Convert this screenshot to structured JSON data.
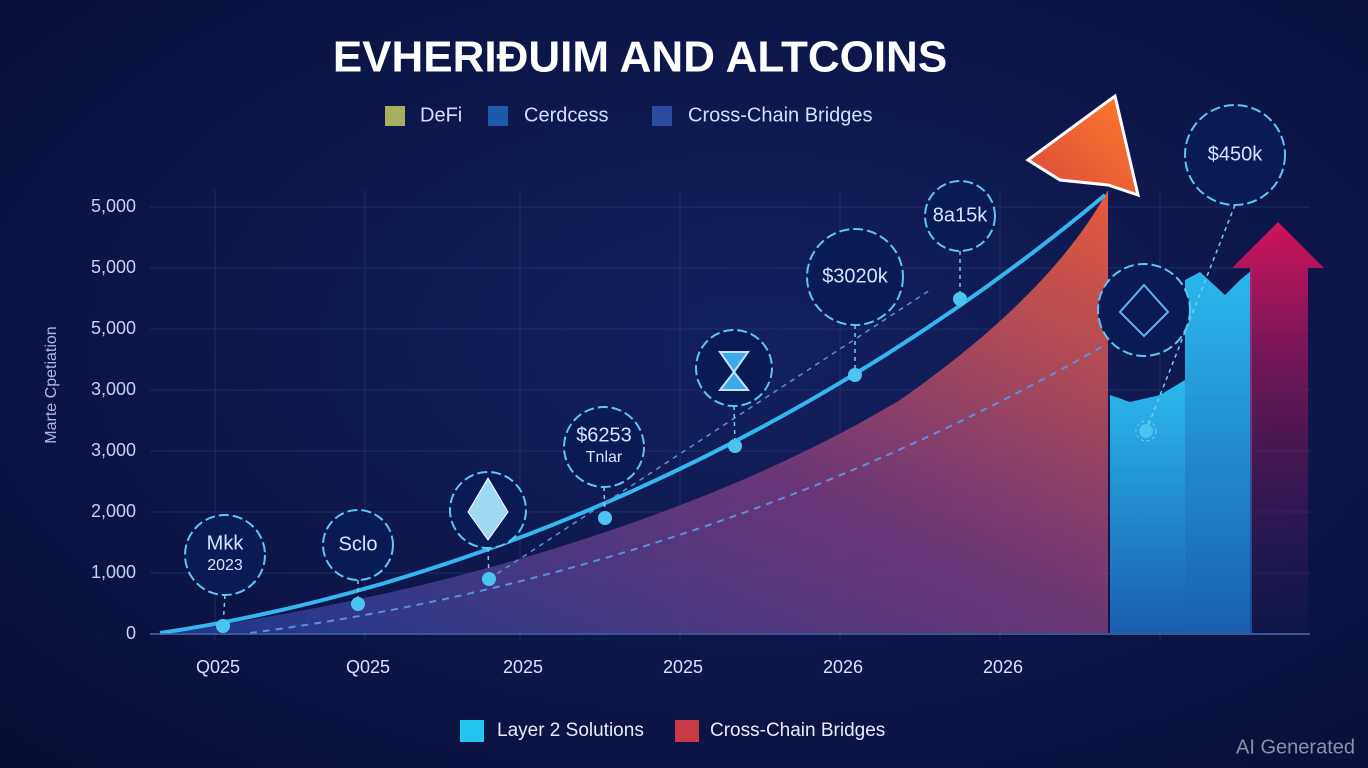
{
  "title": "EVHERIÐUIM AND ALTCOINS",
  "legend_top": [
    "DeFi",
    "Cerdcess",
    "Cross-Chain Bridges"
  ],
  "y_axis_title": "Marte Cpetiation",
  "y_labels": [
    "5,000",
    "5,000",
    "5,000",
    "3,000",
    "3,000",
    "2,000",
    "1,000",
    "0"
  ],
  "x_labels": [
    "Q025",
    "Q025",
    "2025",
    "2025",
    "2026",
    "2026"
  ],
  "annotations": [
    [
      "Mkk",
      "2023"
    ],
    [
      "Sclo"
    ],
    [
      "$6253",
      "Tnlar"
    ],
    [
      "$3020k"
    ],
    [
      "8a15k"
    ],
    [
      "$450k"
    ]
  ],
  "legend_bottom": [
    "Layer 2 Solutions",
    "Cross-Chain Bridges"
  ],
  "watermark": "AI Generated"
}
